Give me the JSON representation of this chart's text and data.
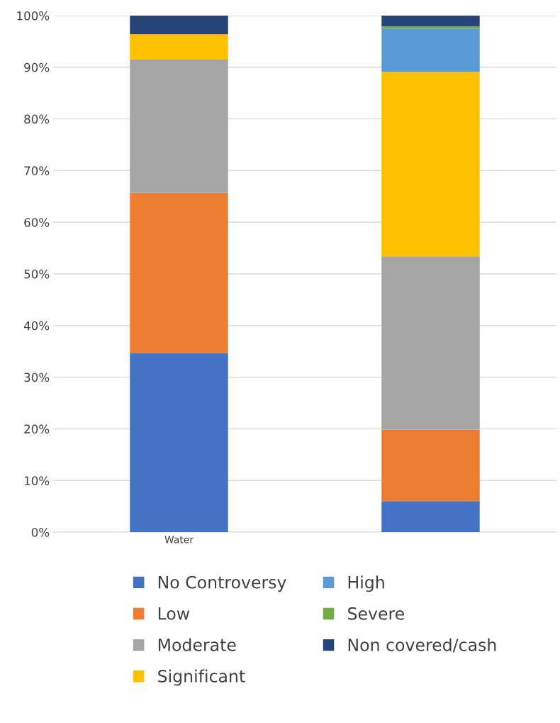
{
  "chart_data": {
    "type": "bar",
    "stacked": true,
    "categories": [
      "Water",
      null
    ],
    "series": [
      {
        "name": "No Controversy",
        "color": "#4472c4",
        "values": [
          34.7,
          6.0
        ]
      },
      {
        "name": "Low",
        "color": "#ed7d31",
        "values": [
          31.0,
          13.8
        ]
      },
      {
        "name": "Moderate",
        "color": "#a5a5a5",
        "values": [
          25.8,
          33.6
        ]
      },
      {
        "name": "Significant",
        "color": "#ffc000",
        "values": [
          4.9,
          35.7
        ]
      },
      {
        "name": "High",
        "color": "#5b9bd5",
        "values": [
          0,
          8.4
        ]
      },
      {
        "name": "Severe",
        "color": "#70ad47",
        "values": [
          0,
          0.4
        ]
      },
      {
        "name": "Non covered/cash",
        "color": "#264478",
        "values": [
          3.6,
          2.1
        ]
      }
    ],
    "ylim": [
      0,
      100
    ],
    "yticks": [
      {
        "value": 0,
        "label": "0%"
      },
      {
        "value": 10,
        "label": "10%"
      },
      {
        "value": 20,
        "label": "20%"
      },
      {
        "value": 30,
        "label": "30%"
      },
      {
        "value": 40,
        "label": "40%"
      },
      {
        "value": 50,
        "label": "50%"
      },
      {
        "value": 60,
        "label": "60%"
      },
      {
        "value": 70,
        "label": "70%"
      },
      {
        "value": 80,
        "label": "80%"
      },
      {
        "value": 90,
        "label": "90%"
      },
      {
        "value": 100,
        "label": "100%"
      }
    ],
    "grid": "y",
    "legend": "bottom"
  }
}
